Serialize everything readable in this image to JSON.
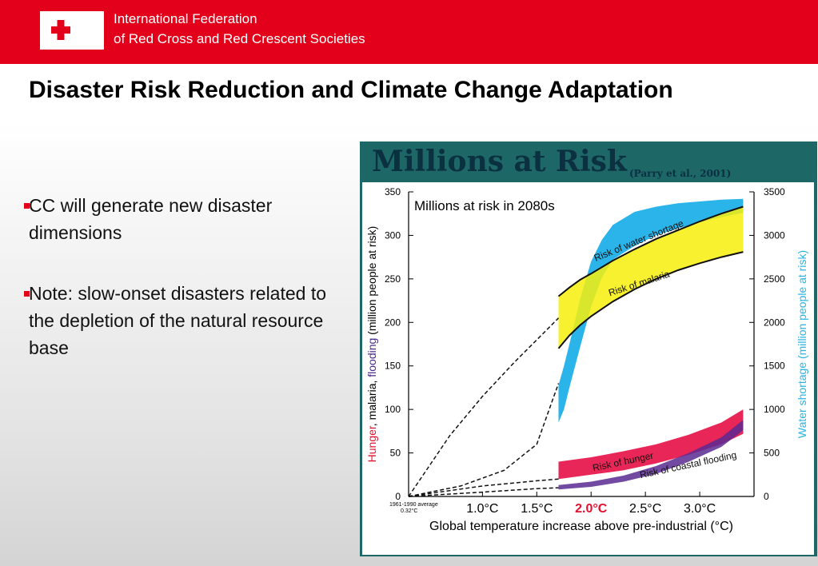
{
  "header": {
    "org_line1": "International Federation",
    "org_line2": "of Red Cross and Red Crescent Societies",
    "brand_color": "#e2001a",
    "logo_icon": "red-cross-red-crescent-logo"
  },
  "slide": {
    "title": "Disaster Risk Reduction and Climate Change Adaptation",
    "bullets": [
      {
        "text": "CC will generate new disaster dimensions"
      },
      {
        "text": "Note: slow-onset disasters related to the depletion of the natural resource base"
      }
    ]
  },
  "chart_panel": {
    "heading": "Millions at Risk",
    "citation": "(Parry et al., 2001)"
  },
  "chart_data": {
    "type": "area",
    "inner_title": "Millions at risk in 2080s",
    "xlabel": "Global temperature increase above pre-industrial (°C)",
    "ylabel_left_parts": [
      {
        "text": "Hunger",
        "color": "#e0102e"
      },
      {
        "text": ", malaria, ",
        "color": "#000000"
      },
      {
        "text": "flooding",
        "color": "#4b2a8c"
      },
      {
        "text": " (million people at risk)",
        "color": "#000000"
      }
    ],
    "ylabel_right": "Water shortage (million people at risk)",
    "ylabel_right_color": "#2bb3e0",
    "xlim": [
      0.32,
      3.5
    ],
    "ylim_left": [
      0,
      350
    ],
    "ylim_right": [
      0,
      3500
    ],
    "x_ticks": [
      {
        "value": 1.0,
        "label": "1.0°C"
      },
      {
        "value": 1.5,
        "label": "1.5°C"
      },
      {
        "value": 2.0,
        "label": "2.0°C",
        "highlight": true
      },
      {
        "value": 2.5,
        "label": "2.5°C"
      },
      {
        "value": 3.0,
        "label": "3.0°C"
      }
    ],
    "y_ticks_left": [
      0,
      50,
      100,
      150,
      200,
      250,
      300,
      350
    ],
    "y_ticks_right": [
      0,
      500,
      1000,
      1500,
      2000,
      2500,
      3000,
      3500
    ],
    "baseline_note_line1": "1961-1990 average",
    "baseline_note_line2": "0.32°C",
    "highlight_color": "#e0102e",
    "bands": [
      {
        "name": "Risk of water shortage",
        "color": "#1fb0e8",
        "axis": "right",
        "x": [
          1.7,
          1.75,
          1.8,
          1.9,
          2.0,
          2.1,
          2.2,
          2.4,
          2.6,
          2.8,
          3.0,
          3.2,
          3.4
        ],
        "upper": [
          1280,
          1500,
          1750,
          2270,
          2700,
          2950,
          3120,
          3270,
          3330,
          3370,
          3390,
          3410,
          3420
        ],
        "lower": [
          850,
          1000,
          1250,
          1720,
          2180,
          2520,
          2720,
          2880,
          3000,
          3080,
          3150,
          3210,
          3260
        ]
      },
      {
        "name": "Risk of malaria",
        "color": "#f7ef0a",
        "axis": "left",
        "x": [
          1.7,
          1.8,
          1.9,
          2.0,
          2.2,
          2.4,
          2.6,
          2.8,
          3.0,
          3.2,
          3.4
        ],
        "upper": [
          230,
          240,
          249,
          256,
          271,
          284,
          296,
          306,
          316,
          325,
          333
        ],
        "lower": [
          170,
          185,
          197,
          207,
          224,
          238,
          250,
          260,
          268,
          275,
          281
        ]
      },
      {
        "name": "Risk of hunger",
        "color": "#e4003a",
        "axis": "left",
        "x": [
          1.7,
          2.0,
          2.3,
          2.6,
          2.9,
          3.2,
          3.4
        ],
        "upper": [
          40,
          45,
          52,
          60,
          71,
          85,
          100
        ],
        "lower": [
          20,
          25,
          30,
          38,
          48,
          60,
          72
        ]
      },
      {
        "name": "Risk of coastal flooding",
        "color": "#5a2a91",
        "axis": "left",
        "x": [
          1.7,
          2.0,
          2.3,
          2.6,
          2.9,
          3.2,
          3.4
        ],
        "upper": [
          13,
          17,
          24,
          35,
          50,
          68,
          88
        ],
        "lower": [
          8,
          11,
          17,
          26,
          40,
          57,
          76
        ]
      }
    ],
    "dashed_lines": [
      {
        "axis": "left",
        "x": [
          0.32,
          0.7,
          1.0,
          1.3,
          1.5,
          1.7
        ],
        "y": [
          0,
          70,
          115,
          155,
          180,
          205
        ]
      },
      {
        "axis": "left",
        "x": [
          0.32,
          0.8,
          1.2,
          1.5,
          1.6,
          1.7
        ],
        "y": [
          0,
          12,
          30,
          60,
          95,
          130
        ]
      },
      {
        "axis": "left",
        "x": [
          0.32,
          1.0,
          1.5,
          1.7
        ],
        "y": [
          0,
          12,
          18,
          20
        ]
      },
      {
        "axis": "left",
        "x": [
          0.32,
          1.0,
          1.5,
          1.7
        ],
        "y": [
          0,
          5,
          9,
          10
        ]
      }
    ],
    "grid": false,
    "legend": "inline labels"
  }
}
